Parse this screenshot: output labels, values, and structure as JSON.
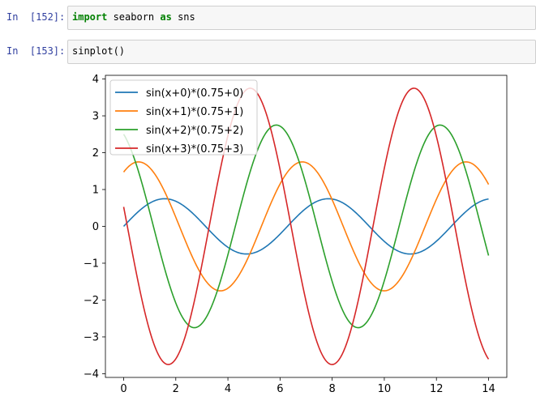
{
  "cells": [
    {
      "prompt": "In  [152]:",
      "code_keyword1": "import",
      "code_module": " seaborn ",
      "code_keyword2": "as",
      "code_alias": " sns"
    },
    {
      "prompt": "In  [153]:",
      "code": "sinplot()"
    }
  ],
  "colors": {
    "prompt": "#303f9f",
    "keyword": "#008000",
    "series": [
      "#1f77b4",
      "#ff7f0e",
      "#2ca02c",
      "#d62728"
    ]
  },
  "chart_data": {
    "type": "line",
    "title": "",
    "xlabel": "",
    "ylabel": "",
    "xlim": [
      -0.7,
      14.7
    ],
    "ylim": [
      -4.1,
      4.1
    ],
    "xticks": [
      0,
      2,
      4,
      6,
      8,
      10,
      12,
      14
    ],
    "yticks": [
      4,
      3,
      2,
      1,
      0,
      -1,
      -2,
      -3,
      -4
    ],
    "grid": false,
    "legend_position": "upper left",
    "x_domain": [
      0,
      14
    ],
    "series": [
      {
        "name": "sin(x+0)*(0.75+0)",
        "phase": 0,
        "amplitude": 0.75
      },
      {
        "name": "sin(x+1)*(0.75+1)",
        "phase": 1,
        "amplitude": 1.75
      },
      {
        "name": "sin(x+2)*(0.75+2)",
        "phase": 2,
        "amplitude": 2.75
      },
      {
        "name": "sin(x+3)*(0.75+3)",
        "phase": 3,
        "amplitude": 3.75
      }
    ]
  }
}
